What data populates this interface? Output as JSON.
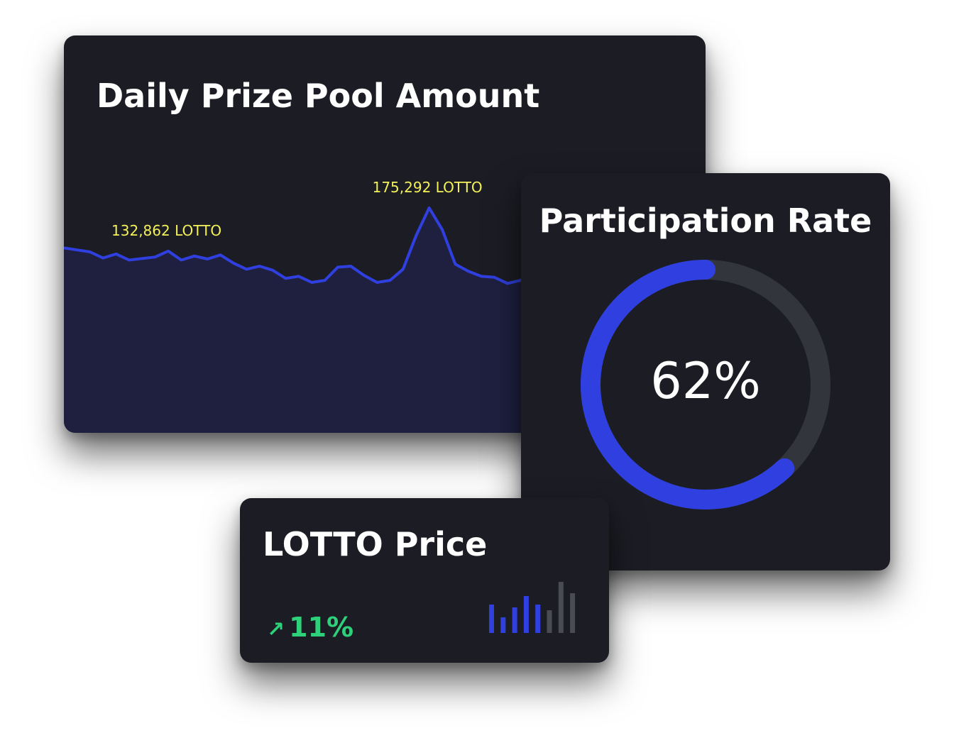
{
  "colors": {
    "card_bg": "#1c1d24",
    "accent": "#3040e0",
    "track": "#33353c",
    "highlight": "#f4f05a",
    "positive": "#2fd07a",
    "inactive_bar": "#4a4c55"
  },
  "chart_data": [
    {
      "type": "area",
      "title": "Daily Prize Pool Amount",
      "xlabel": "",
      "ylabel": "",
      "unit": "LOTTO",
      "grid": false,
      "ylim": [
        0,
        200000
      ],
      "values": [
        136000,
        134000,
        132000,
        126000,
        130000,
        124000,
        125500,
        127000,
        132862,
        124000,
        128000,
        125000,
        129000,
        121000,
        115000,
        118000,
        114000,
        106000,
        108000,
        102000,
        104000,
        117000,
        118000,
        109000,
        102000,
        104000,
        115000,
        148000,
        175292,
        154000,
        120000,
        113000,
        108000,
        107000,
        101000,
        104000,
        114000,
        122000
      ],
      "annotations": [
        {
          "index": 8,
          "text": "132,862 LOTTO"
        },
        {
          "index": 28,
          "text": "175,292 LOTTO"
        }
      ]
    },
    {
      "type": "pie",
      "title": "Participation Rate",
      "values": [
        62,
        38
      ],
      "center_label": "62%"
    },
    {
      "type": "bar",
      "title": "LOTTO Price",
      "values": [
        40,
        22,
        36,
        52,
        40,
        32,
        72,
        56
      ],
      "highlighted_count": 5,
      "change": "↗ 11%"
    }
  ],
  "pool_card": {
    "title": "Daily Prize Pool Amount",
    "label_a": "132,862 LOTTO",
    "label_b": "175,292 LOTTO"
  },
  "rate_card": {
    "title": "Participation Rate",
    "value": "62%"
  },
  "price_card": {
    "title": "LOTTO Price",
    "arrow": "↗",
    "change": "11%"
  }
}
